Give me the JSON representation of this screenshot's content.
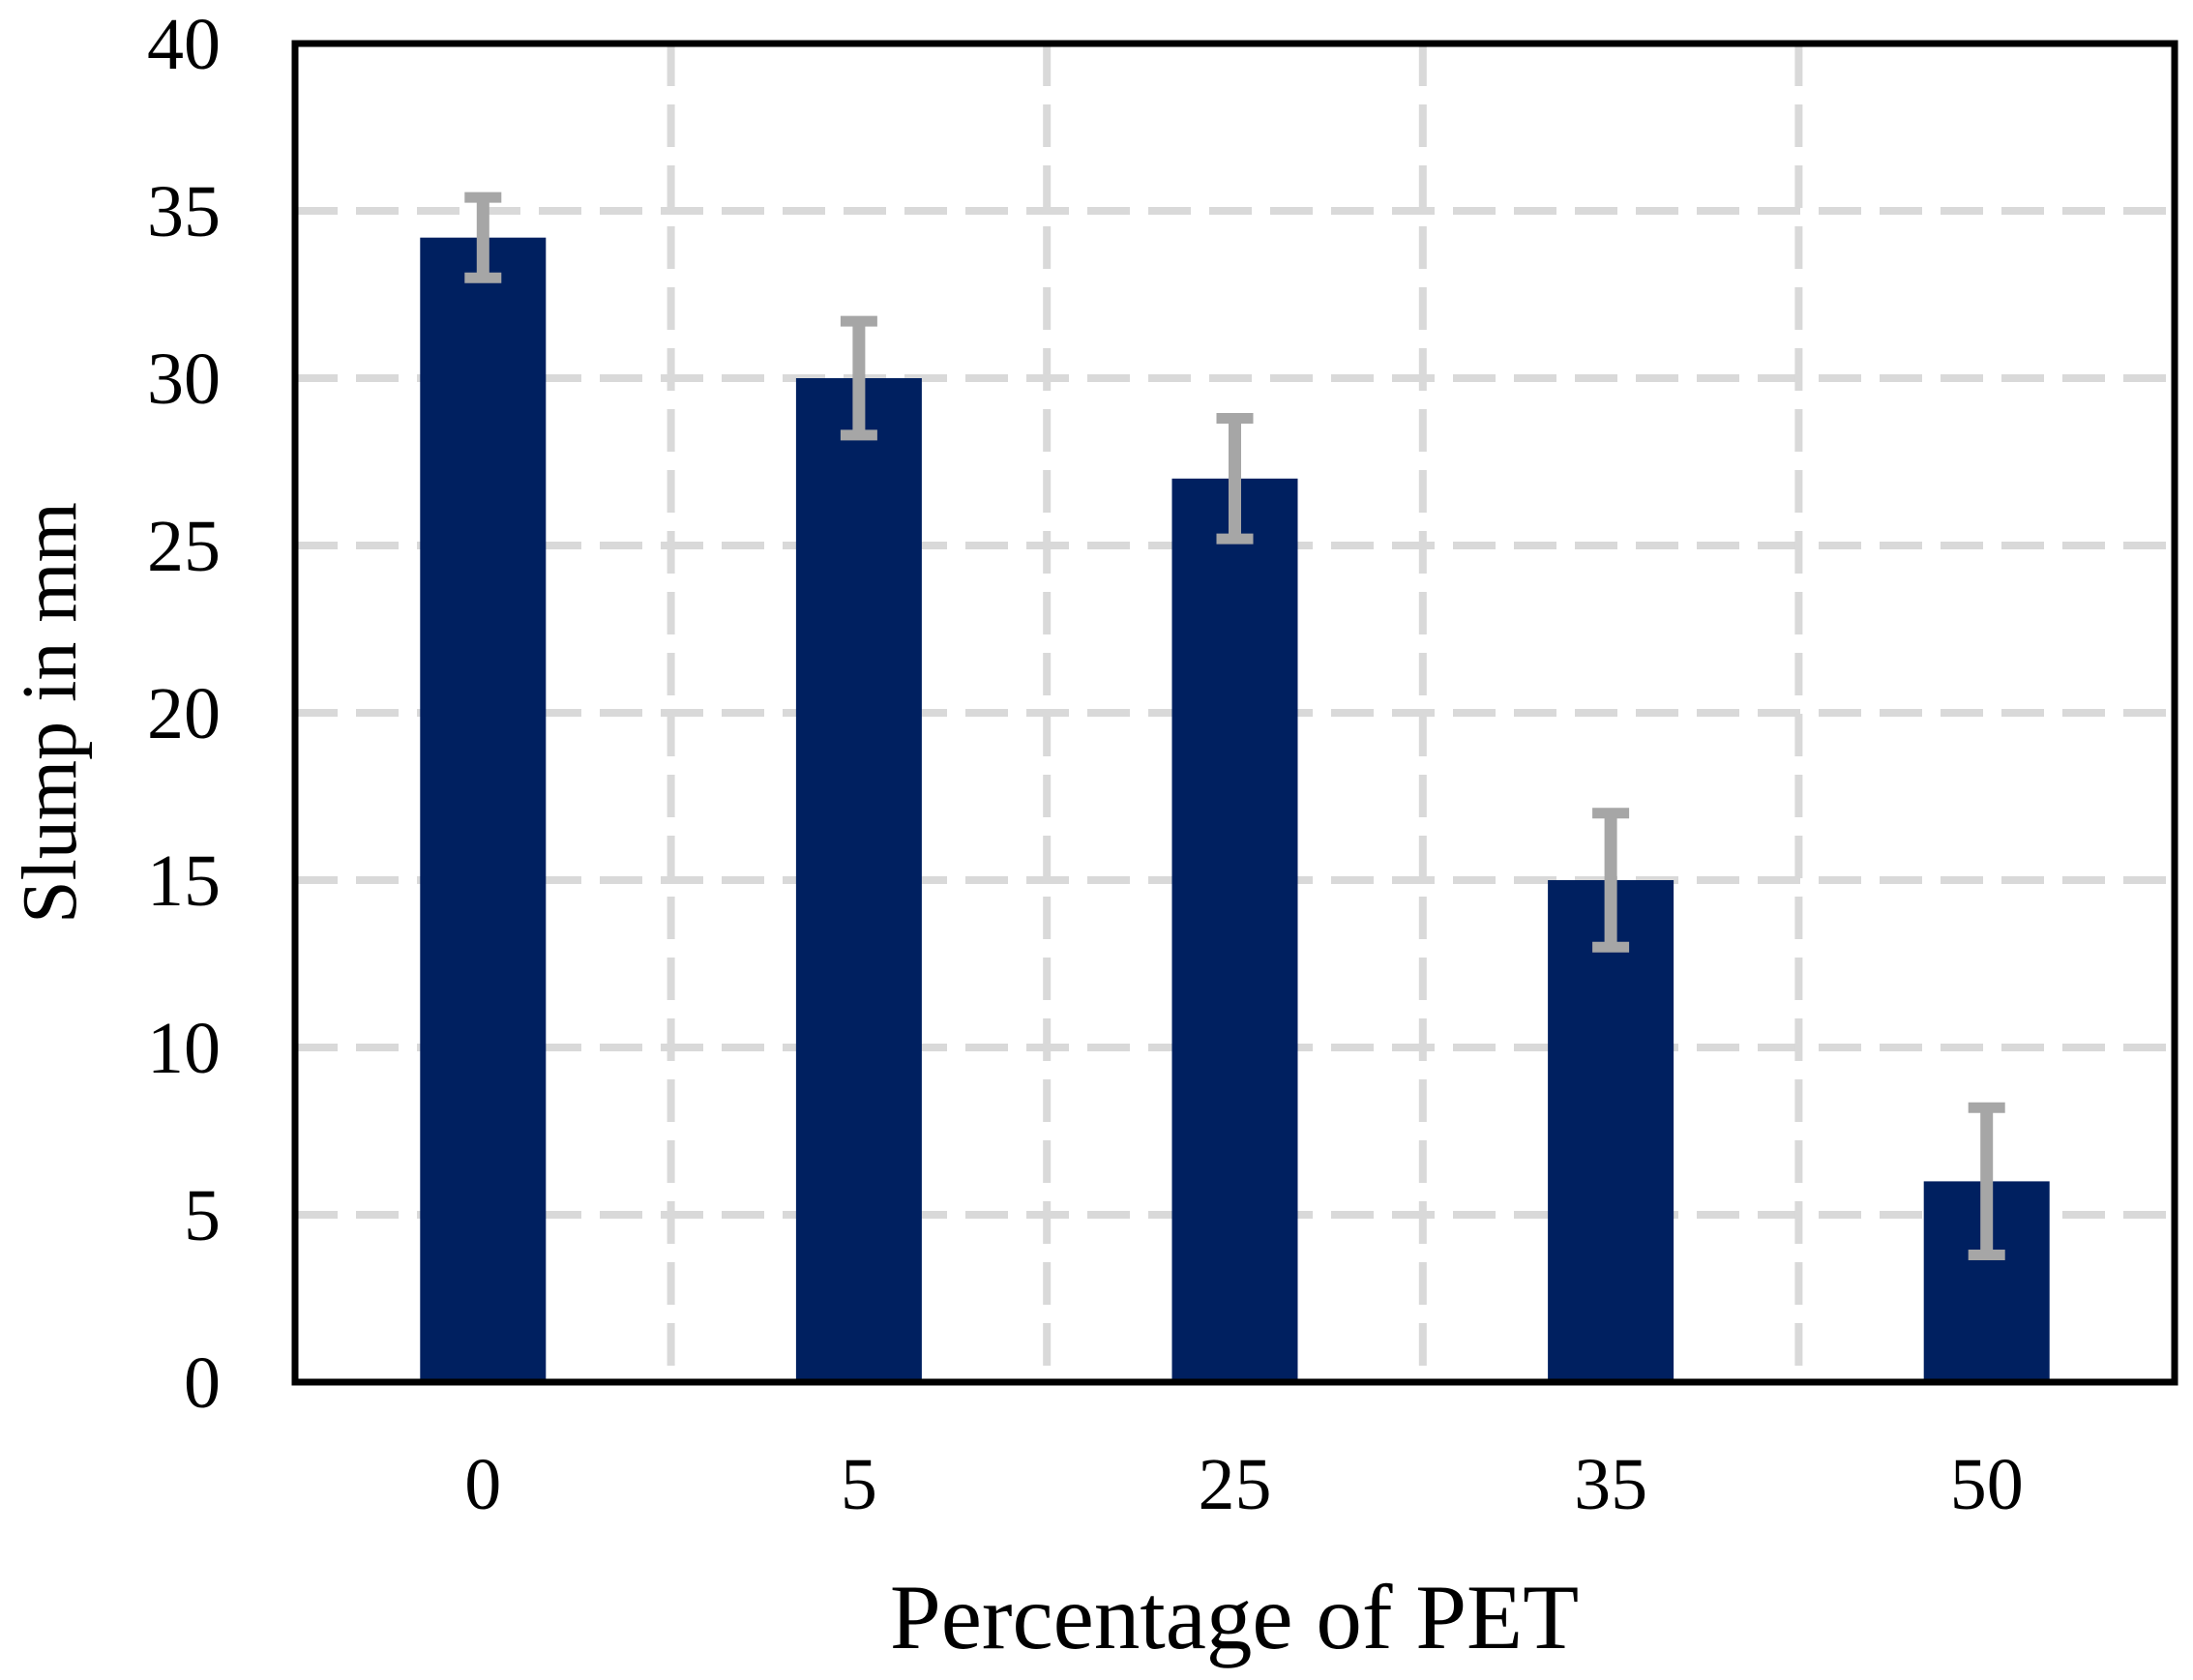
{
  "figure": {
    "description": "Bar chart of concrete slump versus percentage of PET replacement, with error bars",
    "background_color": "#ffffff"
  },
  "chart_data": {
    "type": "bar",
    "title": "",
    "categories": [
      "0",
      "5",
      "25",
      "35",
      "50"
    ],
    "values": [
      34.2,
      30,
      27,
      15,
      6
    ],
    "error_bars": [
      1.2,
      1.7,
      1.8,
      2.0,
      2.2
    ],
    "xlabel": "Percentage of PET",
    "ylabel": "Slump in mm",
    "ylim": [
      0,
      40
    ],
    "yticks": [
      0,
      5,
      10,
      15,
      20,
      25,
      30,
      35,
      40
    ],
    "grid": "dashed horizontal and vertical gridlines inside black plot border",
    "legend": "none",
    "bar_color": "#002060",
    "error_bar_color": "#a6a6a6",
    "gridline_color": "#d9d9d9",
    "axis_color": "#000000",
    "tick_label_color": "#000000"
  }
}
